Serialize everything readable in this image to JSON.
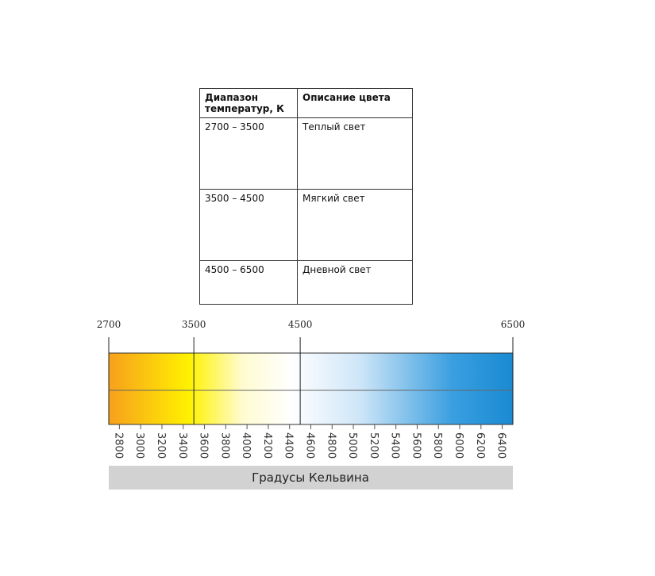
{
  "table": {
    "header": [
      "Диапазон температур, К",
      "Описание цвета"
    ],
    "rows": [
      [
        "2700 – 3500",
        "Теплый  свет"
      ],
      [
        "3500 – 4500",
        "Мягкий свет"
      ],
      [
        "4500  – 6500",
        "Дневной свет"
      ]
    ]
  },
  "scale": {
    "markers": [
      2700,
      3500,
      4500,
      6500
    ],
    "ticks": [
      2800,
      3000,
      3200,
      3400,
      3600,
      3800,
      4000,
      4200,
      4400,
      4600,
      4800,
      5000,
      5200,
      5400,
      5600,
      5800,
      6000,
      6200,
      6400
    ],
    "caption": "Градусы Кельвина"
  }
}
